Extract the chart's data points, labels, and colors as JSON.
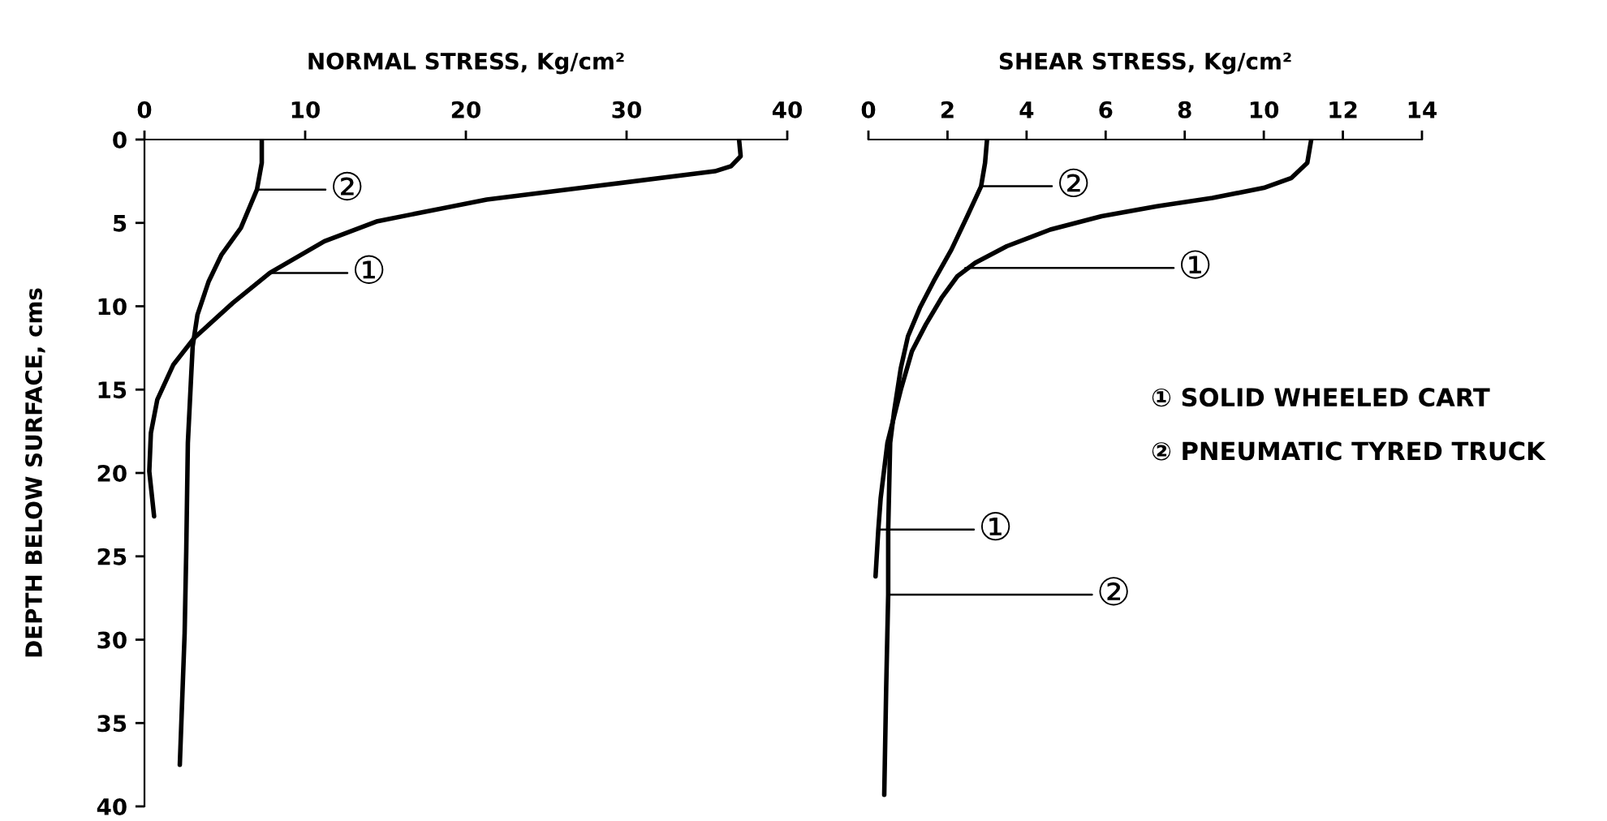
{
  "chart_data": [
    {
      "type": "line",
      "xlabel": "NORMAL STRESS, Kg/cm²",
      "ylabel": "DEPTH BELOW SURFACE, cms",
      "xlim": [
        0,
        40
      ],
      "xticks": [
        0,
        10,
        20,
        30,
        40
      ],
      "ylim": [
        40,
        0
      ],
      "yticks": [
        0,
        5,
        10,
        15,
        20,
        25,
        30,
        35,
        40
      ],
      "series": [
        {
          "color": "#000000",
          "x": [
            37.0,
            37.1,
            36.5,
            35.5,
            28.0,
            21.3,
            14.5,
            11.2,
            7.8,
            5.5,
            3.1,
            1.8,
            0.8,
            0.4,
            0.3,
            0.6
          ],
          "values": [
            0,
            1.0,
            1.6,
            1.9,
            2.8,
            3.6,
            4.9,
            6.1,
            8.0,
            9.8,
            11.9,
            13.5,
            15.6,
            17.6,
            19.9,
            22.6
          ]
        },
        {
          "color": "#000000",
          "x": [
            7.3,
            7.3,
            7.0,
            6.0,
            4.8,
            4.0,
            3.3,
            3.0,
            2.9,
            2.7,
            2.6,
            2.5,
            2.2
          ],
          "values": [
            0,
            1.4,
            3.0,
            5.3,
            6.9,
            8.5,
            10.5,
            12.4,
            14.3,
            18.2,
            24.7,
            29.6,
            37.5
          ]
        }
      ],
      "annotations": [
        {
          "text": "②",
          "x": 7.0,
          "y": 3.0
        },
        {
          "text": "①",
          "x": 7.8,
          "y": 8.0
        }
      ]
    },
    {
      "type": "line",
      "xlabel": "SHEAR STRESS, Kg/cm²",
      "xlim": [
        0,
        14
      ],
      "xticks": [
        0,
        2,
        4,
        6,
        8,
        10,
        12,
        14
      ],
      "ylim": [
        40,
        0
      ],
      "tick_labels": "x",
      "legend": "right",
      "series": [
        {
          "name": "① SOLID WHEELED CART",
          "color": "#000000",
          "x": [
            11.2,
            11.1,
            10.7,
            10.0,
            8.7,
            7.3,
            5.9,
            4.6,
            3.5,
            2.7,
            2.25,
            1.85,
            1.45,
            1.1,
            0.82,
            0.48,
            0.31,
            0.25,
            0.18
          ],
          "values": [
            0,
            1.4,
            2.3,
            2.9,
            3.5,
            4.0,
            4.6,
            5.4,
            6.4,
            7.4,
            8.2,
            9.5,
            11.1,
            12.7,
            15.0,
            18.2,
            21.5,
            23.4,
            26.2
          ]
        },
        {
          "name": "② PNEUMATIC TYRED TRUCK",
          "color": "#000000",
          "x": [
            3.0,
            2.95,
            2.85,
            2.5,
            2.1,
            1.65,
            1.3,
            1.0,
            0.82,
            0.65,
            0.55,
            0.5,
            0.5,
            0.45,
            0.4
          ],
          "values": [
            0,
            1.4,
            2.8,
            4.6,
            6.6,
            8.5,
            10.1,
            11.8,
            13.7,
            16.3,
            18.2,
            23.4,
            27.3,
            32.8,
            39.3
          ]
        }
      ],
      "annotations": [
        {
          "text": "②",
          "x": 2.85,
          "y": 2.8
        },
        {
          "text": "①",
          "x": 2.45,
          "y": 7.7
        },
        {
          "text": "①",
          "x": 0.25,
          "y": 23.4
        },
        {
          "text": "②",
          "x": 0.5,
          "y": 27.3
        }
      ]
    }
  ]
}
